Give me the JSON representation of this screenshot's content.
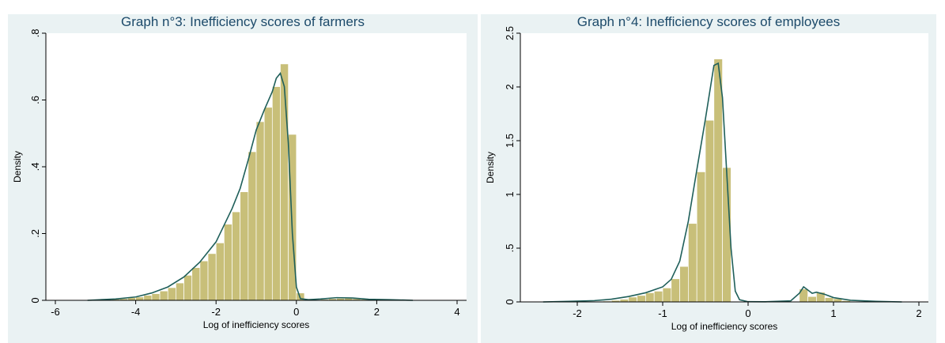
{
  "chart_data": [
    {
      "type": "bar",
      "title": "Graph n°3: Inefficiency scores of farmers",
      "xlabel": "Log of inefficiency scores",
      "ylabel": "Density",
      "xlim": [
        -6,
        4
      ],
      "ylim": [
        0,
        0.8
      ],
      "xticks": [
        -6,
        -4,
        -2,
        0,
        2,
        4
      ],
      "xtick_labels": [
        "-6",
        "-4",
        "-2",
        "0",
        "2",
        "4"
      ],
      "yticks": [
        0,
        0.2,
        0.4,
        0.6,
        0.8
      ],
      "ytick_labels": [
        "0",
        ".2",
        ".4",
        ".6",
        ".8"
      ],
      "bin_width": 0.2,
      "bars": [
        {
          "x0": -5.0,
          "y": 0.002
        },
        {
          "x0": -4.8,
          "y": 0.003
        },
        {
          "x0": -4.6,
          "y": 0.004
        },
        {
          "x0": -4.4,
          "y": 0.005
        },
        {
          "x0": -4.2,
          "y": 0.008
        },
        {
          "x0": -4.0,
          "y": 0.01
        },
        {
          "x0": -3.8,
          "y": 0.015
        },
        {
          "x0": -3.6,
          "y": 0.02
        },
        {
          "x0": -3.4,
          "y": 0.028
        },
        {
          "x0": -3.2,
          "y": 0.038
        },
        {
          "x0": -3.0,
          "y": 0.052
        },
        {
          "x0": -2.8,
          "y": 0.075
        },
        {
          "x0": -2.6,
          "y": 0.098
        },
        {
          "x0": -2.4,
          "y": 0.118
        },
        {
          "x0": -2.2,
          "y": 0.14
        },
        {
          "x0": -2.0,
          "y": 0.172
        },
        {
          "x0": -1.8,
          "y": 0.228
        },
        {
          "x0": -1.6,
          "y": 0.265
        },
        {
          "x0": -1.4,
          "y": 0.325
        },
        {
          "x0": -1.2,
          "y": 0.445
        },
        {
          "x0": -1.0,
          "y": 0.535
        },
        {
          "x0": -0.8,
          "y": 0.578
        },
        {
          "x0": -0.6,
          "y": 0.64
        },
        {
          "x0": -0.4,
          "y": 0.708
        },
        {
          "x0": -0.2,
          "y": 0.497
        },
        {
          "x0": 0.0,
          "y": 0.022
        },
        {
          "x0": 0.6,
          "y": 0.003
        },
        {
          "x0": 0.8,
          "y": 0.005
        },
        {
          "x0": 1.0,
          "y": 0.006
        },
        {
          "x0": 1.2,
          "y": 0.008
        },
        {
          "x0": 1.4,
          "y": 0.005
        },
        {
          "x0": 1.6,
          "y": 0.003
        },
        {
          "x0": 2.2,
          "y": 0.002
        },
        {
          "x0": 2.4,
          "y": 0.002
        }
      ],
      "density_curve": {
        "x": [
          -5.2,
          -4.5,
          -4.0,
          -3.6,
          -3.2,
          -2.8,
          -2.4,
          -2.0,
          -1.8,
          -1.6,
          -1.4,
          -1.2,
          -1.0,
          -0.8,
          -0.6,
          -0.5,
          -0.4,
          -0.3,
          -0.2,
          -0.1,
          0.0,
          0.1,
          0.3,
          0.6,
          1.0,
          1.4,
          1.8,
          2.3,
          2.9
        ],
        "y": [
          0.0,
          0.004,
          0.01,
          0.022,
          0.04,
          0.07,
          0.115,
          0.175,
          0.225,
          0.275,
          0.335,
          0.42,
          0.51,
          0.57,
          0.625,
          0.665,
          0.68,
          0.64,
          0.47,
          0.2,
          0.04,
          0.005,
          0.002,
          0.004,
          0.008,
          0.007,
          0.003,
          0.002,
          0.0
        ]
      },
      "bar_color": "#c8bf79",
      "curve_color": "#1f5f5a"
    },
    {
      "type": "bar",
      "title": "Graph n°4: Inefficiency scores of employees",
      "xlabel": "Log of inefficiency scores",
      "ylabel": "Density",
      "xlim": [
        -2.5,
        2
      ],
      "ylim": [
        0,
        2.5
      ],
      "xticks": [
        -2,
        -1,
        0,
        1,
        2
      ],
      "xtick_labels": [
        "-2",
        "-1",
        "0",
        "1",
        "2"
      ],
      "yticks": [
        0,
        0.5,
        1,
        1.5,
        2,
        2.5
      ],
      "ytick_labels": [
        "0",
        ".5",
        "1",
        "1.5",
        "2",
        "2.5"
      ],
      "bin_width": 0.1,
      "bars": [
        {
          "x0": -1.8,
          "y": 0.005
        },
        {
          "x0": -1.7,
          "y": 0.008
        },
        {
          "x0": -1.6,
          "y": 0.015
        },
        {
          "x0": -1.5,
          "y": 0.025
        },
        {
          "x0": -1.4,
          "y": 0.045
        },
        {
          "x0": -1.3,
          "y": 0.06
        },
        {
          "x0": -1.2,
          "y": 0.085
        },
        {
          "x0": -1.1,
          "y": 0.1
        },
        {
          "x0": -1.0,
          "y": 0.13
        },
        {
          "x0": -0.9,
          "y": 0.215
        },
        {
          "x0": -0.8,
          "y": 0.33
        },
        {
          "x0": -0.7,
          "y": 0.73
        },
        {
          "x0": -0.6,
          "y": 1.21
        },
        {
          "x0": -0.5,
          "y": 1.69
        },
        {
          "x0": -0.4,
          "y": 2.26
        },
        {
          "x0": -0.3,
          "y": 1.25
        },
        {
          "x0": 0.6,
          "y": 0.12
        },
        {
          "x0": 0.7,
          "y": 0.05
        },
        {
          "x0": 0.8,
          "y": 0.09
        },
        {
          "x0": 0.9,
          "y": 0.04
        },
        {
          "x0": 1.0,
          "y": 0.03
        },
        {
          "x0": 1.1,
          "y": 0.012
        },
        {
          "x0": 1.2,
          "y": 0.006
        }
      ],
      "density_curve": {
        "x": [
          -2.4,
          -2.1,
          -1.8,
          -1.6,
          -1.4,
          -1.2,
          -1.0,
          -0.9,
          -0.8,
          -0.7,
          -0.6,
          -0.5,
          -0.45,
          -0.4,
          -0.35,
          -0.3,
          -0.25,
          -0.2,
          -0.15,
          -0.1,
          0.0,
          0.2,
          0.5,
          0.6,
          0.65,
          0.7,
          0.75,
          0.8,
          0.9,
          1.0,
          1.2,
          1.5,
          1.8
        ],
        "y": [
          0.0,
          0.005,
          0.012,
          0.025,
          0.05,
          0.085,
          0.14,
          0.21,
          0.38,
          0.75,
          1.23,
          1.7,
          1.95,
          2.2,
          2.22,
          1.9,
          1.2,
          0.5,
          0.1,
          0.02,
          0.002,
          0.001,
          0.01,
          0.08,
          0.14,
          0.11,
          0.08,
          0.09,
          0.07,
          0.04,
          0.015,
          0.005,
          0.0
        ]
      },
      "bar_color": "#c8bf79",
      "curve_color": "#1f5f5a"
    }
  ]
}
